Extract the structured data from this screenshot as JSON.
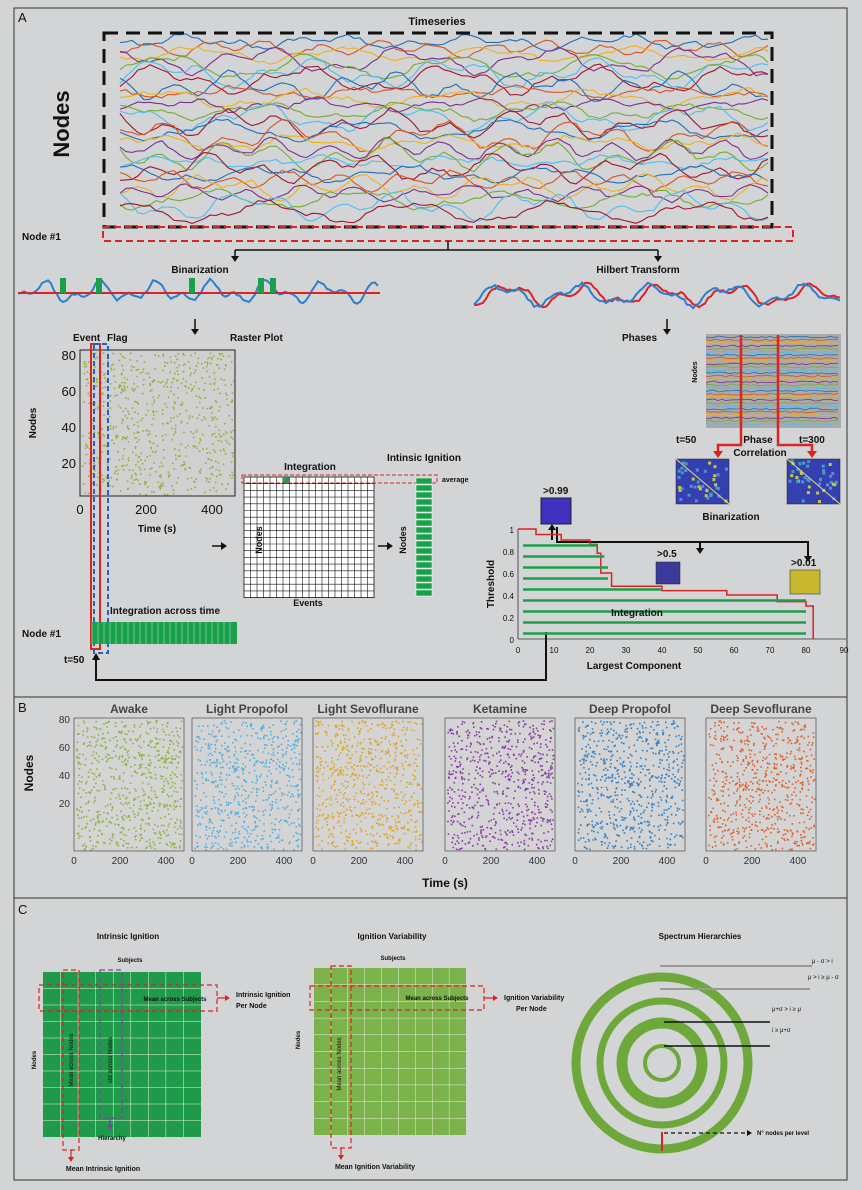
{
  "panel_a": {
    "letter": "A",
    "timeseries_title": "Timeseries",
    "nodes_label": "Nodes",
    "node1_label": "Node #1",
    "binarization": "Binarization",
    "hilbert": "Hilbert Transform",
    "raster_plot": "Raster Plot",
    "event": "Event",
    "flag": "Flag",
    "raster_ylabel": "Nodes",
    "raster_xlabel": "Time (s)",
    "raster_yticks": [
      "80",
      "60",
      "40",
      "20"
    ],
    "raster_xticks": [
      "0",
      "200",
      "400"
    ],
    "integration": "Integration",
    "intrinsic_ignition": "Intinsic Ignition",
    "average": "average",
    "grid_ylabel": "Nodes",
    "grid_xlabel": "Events",
    "ign_ylabel": "Nodes",
    "integration_time": "Integration across time",
    "node1_bottom": "Node #1",
    "t50_bottom": "t=50",
    "phases": "Phases",
    "phase_nodes": "Nodes",
    "t50": "t=50",
    "t300": "t=300",
    "phase_corr": "Phase",
    "phase_corr2": "Correlation",
    "binarization2": "Binarization",
    "thr_099": ">0.99",
    "thr_05": ">0.5",
    "thr_001": ">0.01",
    "threshold_label": "Threshold",
    "largest_component": "Largest Component",
    "integration_plot": "Integration",
    "thr_yticks": [
      "1",
      "0.8",
      "0.6",
      "0.4",
      "0.2",
      "0"
    ],
    "thr_xticks": [
      "0",
      "10",
      "20",
      "30",
      "40",
      "50",
      "60",
      "70",
      "80",
      "90"
    ]
  },
  "panel_b": {
    "letter": "B",
    "ylabel": "Nodes",
    "xlabel": "Time (s)",
    "yticks": [
      "80",
      "60",
      "40",
      "20"
    ],
    "xticks": [
      "0",
      "200",
      "400"
    ],
    "states": [
      {
        "name": "Awake",
        "color": "#8db33e"
      },
      {
        "name": "Light Propofol",
        "color": "#55aee0"
      },
      {
        "name": "Light Sevoflurane",
        "color": "#e0a520"
      },
      {
        "name": "Ketamine",
        "color": "#8a3aa8"
      },
      {
        "name": "Deep Propofol",
        "color": "#2f82c8"
      },
      {
        "name": "Deep Sevoflurane",
        "color": "#e0602a"
      }
    ]
  },
  "panel_c": {
    "letter": "C",
    "ii_title": "Intrinsic Ignition",
    "subjects": "Subjects",
    "nodes": "Nodes",
    "mean_across_subjects": "Mean across Subjects",
    "ii_per_node_1": "Intrinsic Ignition",
    "ii_per_node_2": "Per Node",
    "mean_across_nodes": "Mean across Nodes",
    "std_across_nodes": "std across Nodes",
    "hierarchy": "Hierarchy",
    "mean_ii": "Mean Intrinsic Ignition",
    "iv_title": "Ignition Variability",
    "iv_subjects": "Subjects",
    "iv_nodes": "Nodes",
    "iv_mean_subjects": "Mean across Subjects",
    "iv_per_node_1": "Ignition Variability",
    "iv_per_node_2": "Per Node",
    "iv_mean_nodes": "Mean across Nodes",
    "mean_iv": "Mean Ignition Variability",
    "sh_title": "Spectrum Hierarchies",
    "level1": "μ - σ > i",
    "level2": "μ > i ≥ μ - σ",
    "level3": "μ+σ > i ≥ μ",
    "level4": "i ≥ μ+σ",
    "nodes_per_level": "N° nodes per level"
  }
}
